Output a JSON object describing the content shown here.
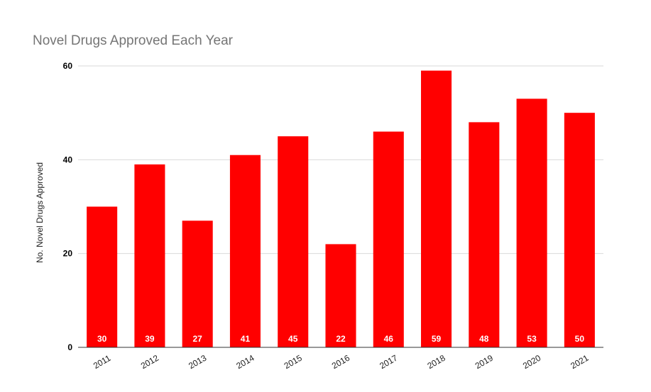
{
  "chart_data": {
    "type": "bar",
    "title": "Novel Drugs Approved Each Year",
    "xlabel": "",
    "ylabel": "No. Novel Drugs Approved",
    "categories": [
      "2011",
      "2012",
      "2013",
      "2014",
      "2015",
      "2016",
      "2017",
      "2018",
      "2019",
      "2020",
      "2021"
    ],
    "values": [
      30,
      39,
      27,
      41,
      45,
      22,
      46,
      59,
      48,
      53,
      50
    ],
    "ylim": [
      0,
      60
    ],
    "yticks": [
      "0",
      "20",
      "40",
      "60"
    ],
    "grid": true,
    "legend": "none",
    "bar_color": "#ff0000",
    "data_label_color": "#ffffff",
    "data_label_position": "inside-base"
  }
}
